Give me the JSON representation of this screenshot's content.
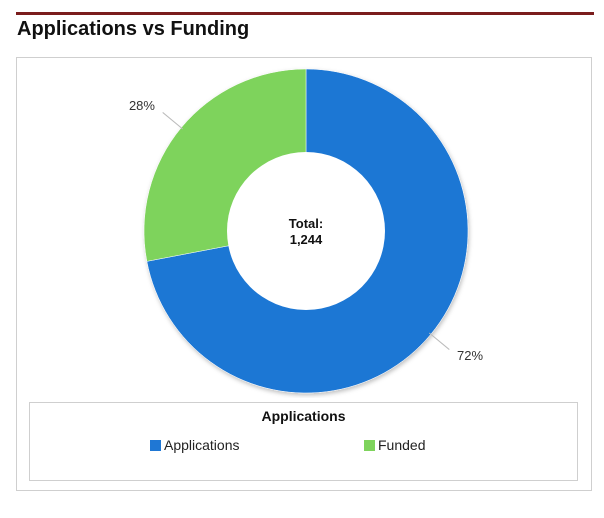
{
  "page": {
    "title": "Applications vs Funding"
  },
  "chart_data": {
    "type": "pie",
    "title": "",
    "center_label": "Total:",
    "center_value": "1,244",
    "total": 1244,
    "categories": [
      "Applications",
      "Funded"
    ],
    "values": [
      72,
      28
    ],
    "value_labels": [
      "72%",
      "28%"
    ],
    "colors": [
      "#1f77d4",
      "#7ed35c"
    ],
    "donut": true,
    "legend": {
      "title": "Applications",
      "placement": "bottom",
      "items": [
        "Applications",
        "Funded"
      ]
    }
  }
}
